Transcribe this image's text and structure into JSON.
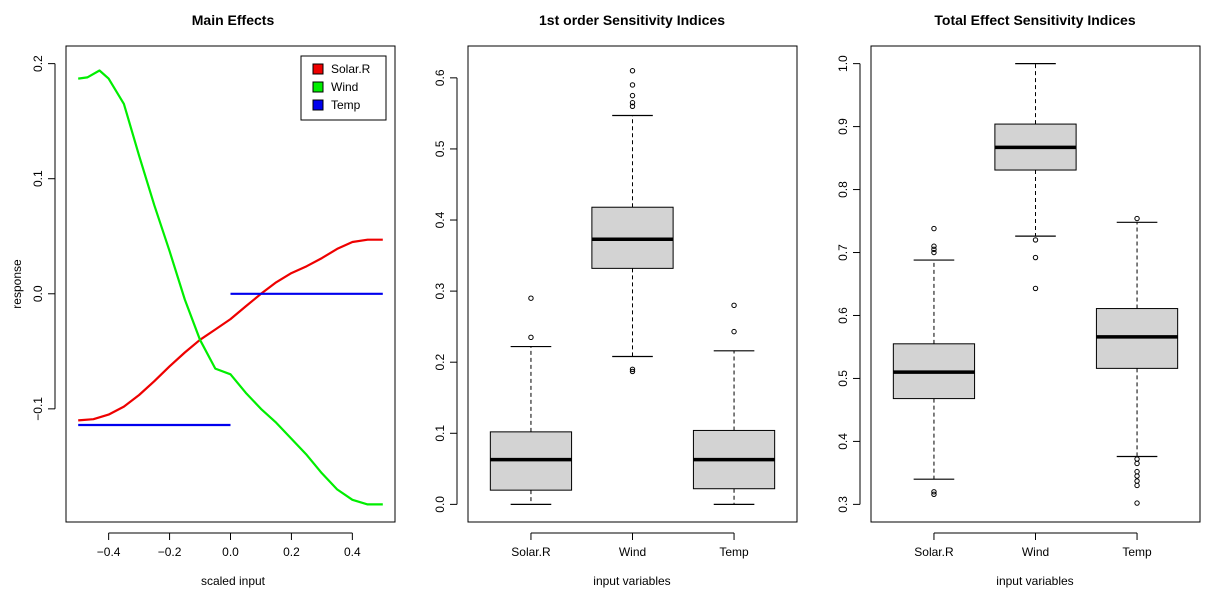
{
  "chart_data": [
    {
      "type": "line",
      "title": "Main Effects",
      "xlabel": "scaled input",
      "ylabel": "response",
      "xlim": [
        -0.5,
        0.5
      ],
      "ylim": [
        -0.183,
        0.2
      ],
      "xticks": [
        {
          "v": -0.4,
          "label": "−0.4"
        },
        {
          "v": -0.2,
          "label": "−0.2"
        },
        {
          "v": 0.0,
          "label": "0.0"
        },
        {
          "v": 0.2,
          "label": "0.2"
        },
        {
          "v": 0.4,
          "label": "0.4"
        }
      ],
      "yticks": [
        {
          "v": -0.1,
          "label": "−0.1"
        },
        {
          "v": 0.0,
          "label": "0.0"
        },
        {
          "v": 0.1,
          "label": "0.1"
        },
        {
          "v": 0.2,
          "label": "0.2"
        }
      ],
      "legend": "top-right",
      "series": [
        {
          "name": "Solar.R",
          "color": "#ee0000",
          "points": [
            [
              -0.5,
              -0.11
            ],
            [
              -0.45,
              -0.109
            ],
            [
              -0.4,
              -0.105
            ],
            [
              -0.35,
              -0.098
            ],
            [
              -0.3,
              -0.088
            ],
            [
              -0.25,
              -0.076
            ],
            [
              -0.2,
              -0.063
            ],
            [
              -0.15,
              -0.051
            ],
            [
              -0.1,
              -0.04
            ],
            [
              -0.05,
              -0.031
            ],
            [
              0.0,
              -0.022
            ],
            [
              0.05,
              -0.011
            ],
            [
              0.1,
              0.0
            ],
            [
              0.15,
              0.01
            ],
            [
              0.2,
              0.018
            ],
            [
              0.25,
              0.024
            ],
            [
              0.3,
              0.031
            ],
            [
              0.35,
              0.039
            ],
            [
              0.4,
              0.045
            ],
            [
              0.45,
              0.047
            ],
            [
              0.5,
              0.047
            ]
          ]
        },
        {
          "name": "Wind",
          "color": "#00ee00",
          "points": [
            [
              -0.5,
              0.187
            ],
            [
              -0.47,
              0.188
            ],
            [
              -0.43,
              0.194
            ],
            [
              -0.4,
              0.187
            ],
            [
              -0.35,
              0.165
            ],
            [
              -0.3,
              0.12
            ],
            [
              -0.25,
              0.077
            ],
            [
              -0.2,
              0.037
            ],
            [
              -0.15,
              -0.005
            ],
            [
              -0.1,
              -0.04
            ],
            [
              -0.05,
              -0.065
            ],
            [
              0.0,
              -0.07
            ],
            [
              0.05,
              -0.086
            ],
            [
              0.1,
              -0.1
            ],
            [
              0.15,
              -0.112
            ],
            [
              0.2,
              -0.126
            ],
            [
              0.25,
              -0.14
            ],
            [
              0.3,
              -0.156
            ],
            [
              0.35,
              -0.17
            ],
            [
              0.4,
              -0.179
            ],
            [
              0.45,
              -0.183
            ],
            [
              0.5,
              -0.183
            ]
          ]
        },
        {
          "name": "Temp",
          "color": "#0000ee",
          "points": [
            [
              -0.5,
              -0.114
            ],
            [
              0.0,
              -0.114
            ],
            null,
            [
              0.0,
              0.0
            ],
            [
              0.5,
              0.0
            ]
          ]
        }
      ]
    },
    {
      "type": "box",
      "title": "1st order Sensitivity Indices",
      "xlabel": "input variables",
      "ylabel": "",
      "ylim": [
        0.0,
        0.62
      ],
      "yticks": [
        {
          "v": 0.0,
          "label": "0.0"
        },
        {
          "v": 0.1,
          "label": "0.1"
        },
        {
          "v": 0.2,
          "label": "0.2"
        },
        {
          "v": 0.3,
          "label": "0.3"
        },
        {
          "v": 0.4,
          "label": "0.4"
        },
        {
          "v": 0.5,
          "label": "0.5"
        },
        {
          "v": 0.6,
          "label": "0.6"
        }
      ],
      "categories": [
        "Solar.R",
        "Wind",
        "Temp"
      ],
      "boxes": [
        {
          "whisker_low": 0.0,
          "q1": 0.02,
          "median": 0.063,
          "q3": 0.102,
          "whisker_high": 0.222,
          "outliers": [
            0.235,
            0.29
          ]
        },
        {
          "whisker_low": 0.208,
          "q1": 0.332,
          "median": 0.373,
          "q3": 0.418,
          "whisker_high": 0.547,
          "outliers": [
            0.187,
            0.19,
            0.56,
            0.565,
            0.575,
            0.59,
            0.61
          ]
        },
        {
          "whisker_low": 0.0,
          "q1": 0.022,
          "median": 0.063,
          "q3": 0.104,
          "whisker_high": 0.216,
          "outliers": [
            0.243,
            0.28
          ]
        }
      ]
    },
    {
      "type": "box",
      "title": "Total Effect Sensitivity Indices",
      "xlabel": "input variables",
      "ylabel": "",
      "ylim": [
        0.3,
        1.0
      ],
      "yticks": [
        {
          "v": 0.3,
          "label": "0.3"
        },
        {
          "v": 0.4,
          "label": "0.4"
        },
        {
          "v": 0.5,
          "label": "0.5"
        },
        {
          "v": 0.6,
          "label": "0.6"
        },
        {
          "v": 0.7,
          "label": "0.7"
        },
        {
          "v": 0.8,
          "label": "0.8"
        },
        {
          "v": 0.9,
          "label": "0.9"
        },
        {
          "v": 1.0,
          "label": "1.0"
        }
      ],
      "categories": [
        "Solar.R",
        "Wind",
        "Temp"
      ],
      "boxes": [
        {
          "whisker_low": 0.34,
          "q1": 0.468,
          "median": 0.51,
          "q3": 0.555,
          "whisker_high": 0.688,
          "outliers": [
            0.316,
            0.32,
            0.7,
            0.705,
            0.71,
            0.738
          ]
        },
        {
          "whisker_low": 0.726,
          "q1": 0.831,
          "median": 0.867,
          "q3": 0.904,
          "whisker_high": 1.0,
          "outliers": [
            0.643,
            0.692,
            0.72
          ]
        },
        {
          "whisker_low": 0.376,
          "q1": 0.516,
          "median": 0.566,
          "q3": 0.611,
          "whisker_high": 0.748,
          "outliers": [
            0.302,
            0.33,
            0.337,
            0.345,
            0.352,
            0.365,
            0.372,
            0.754
          ]
        }
      ]
    }
  ]
}
